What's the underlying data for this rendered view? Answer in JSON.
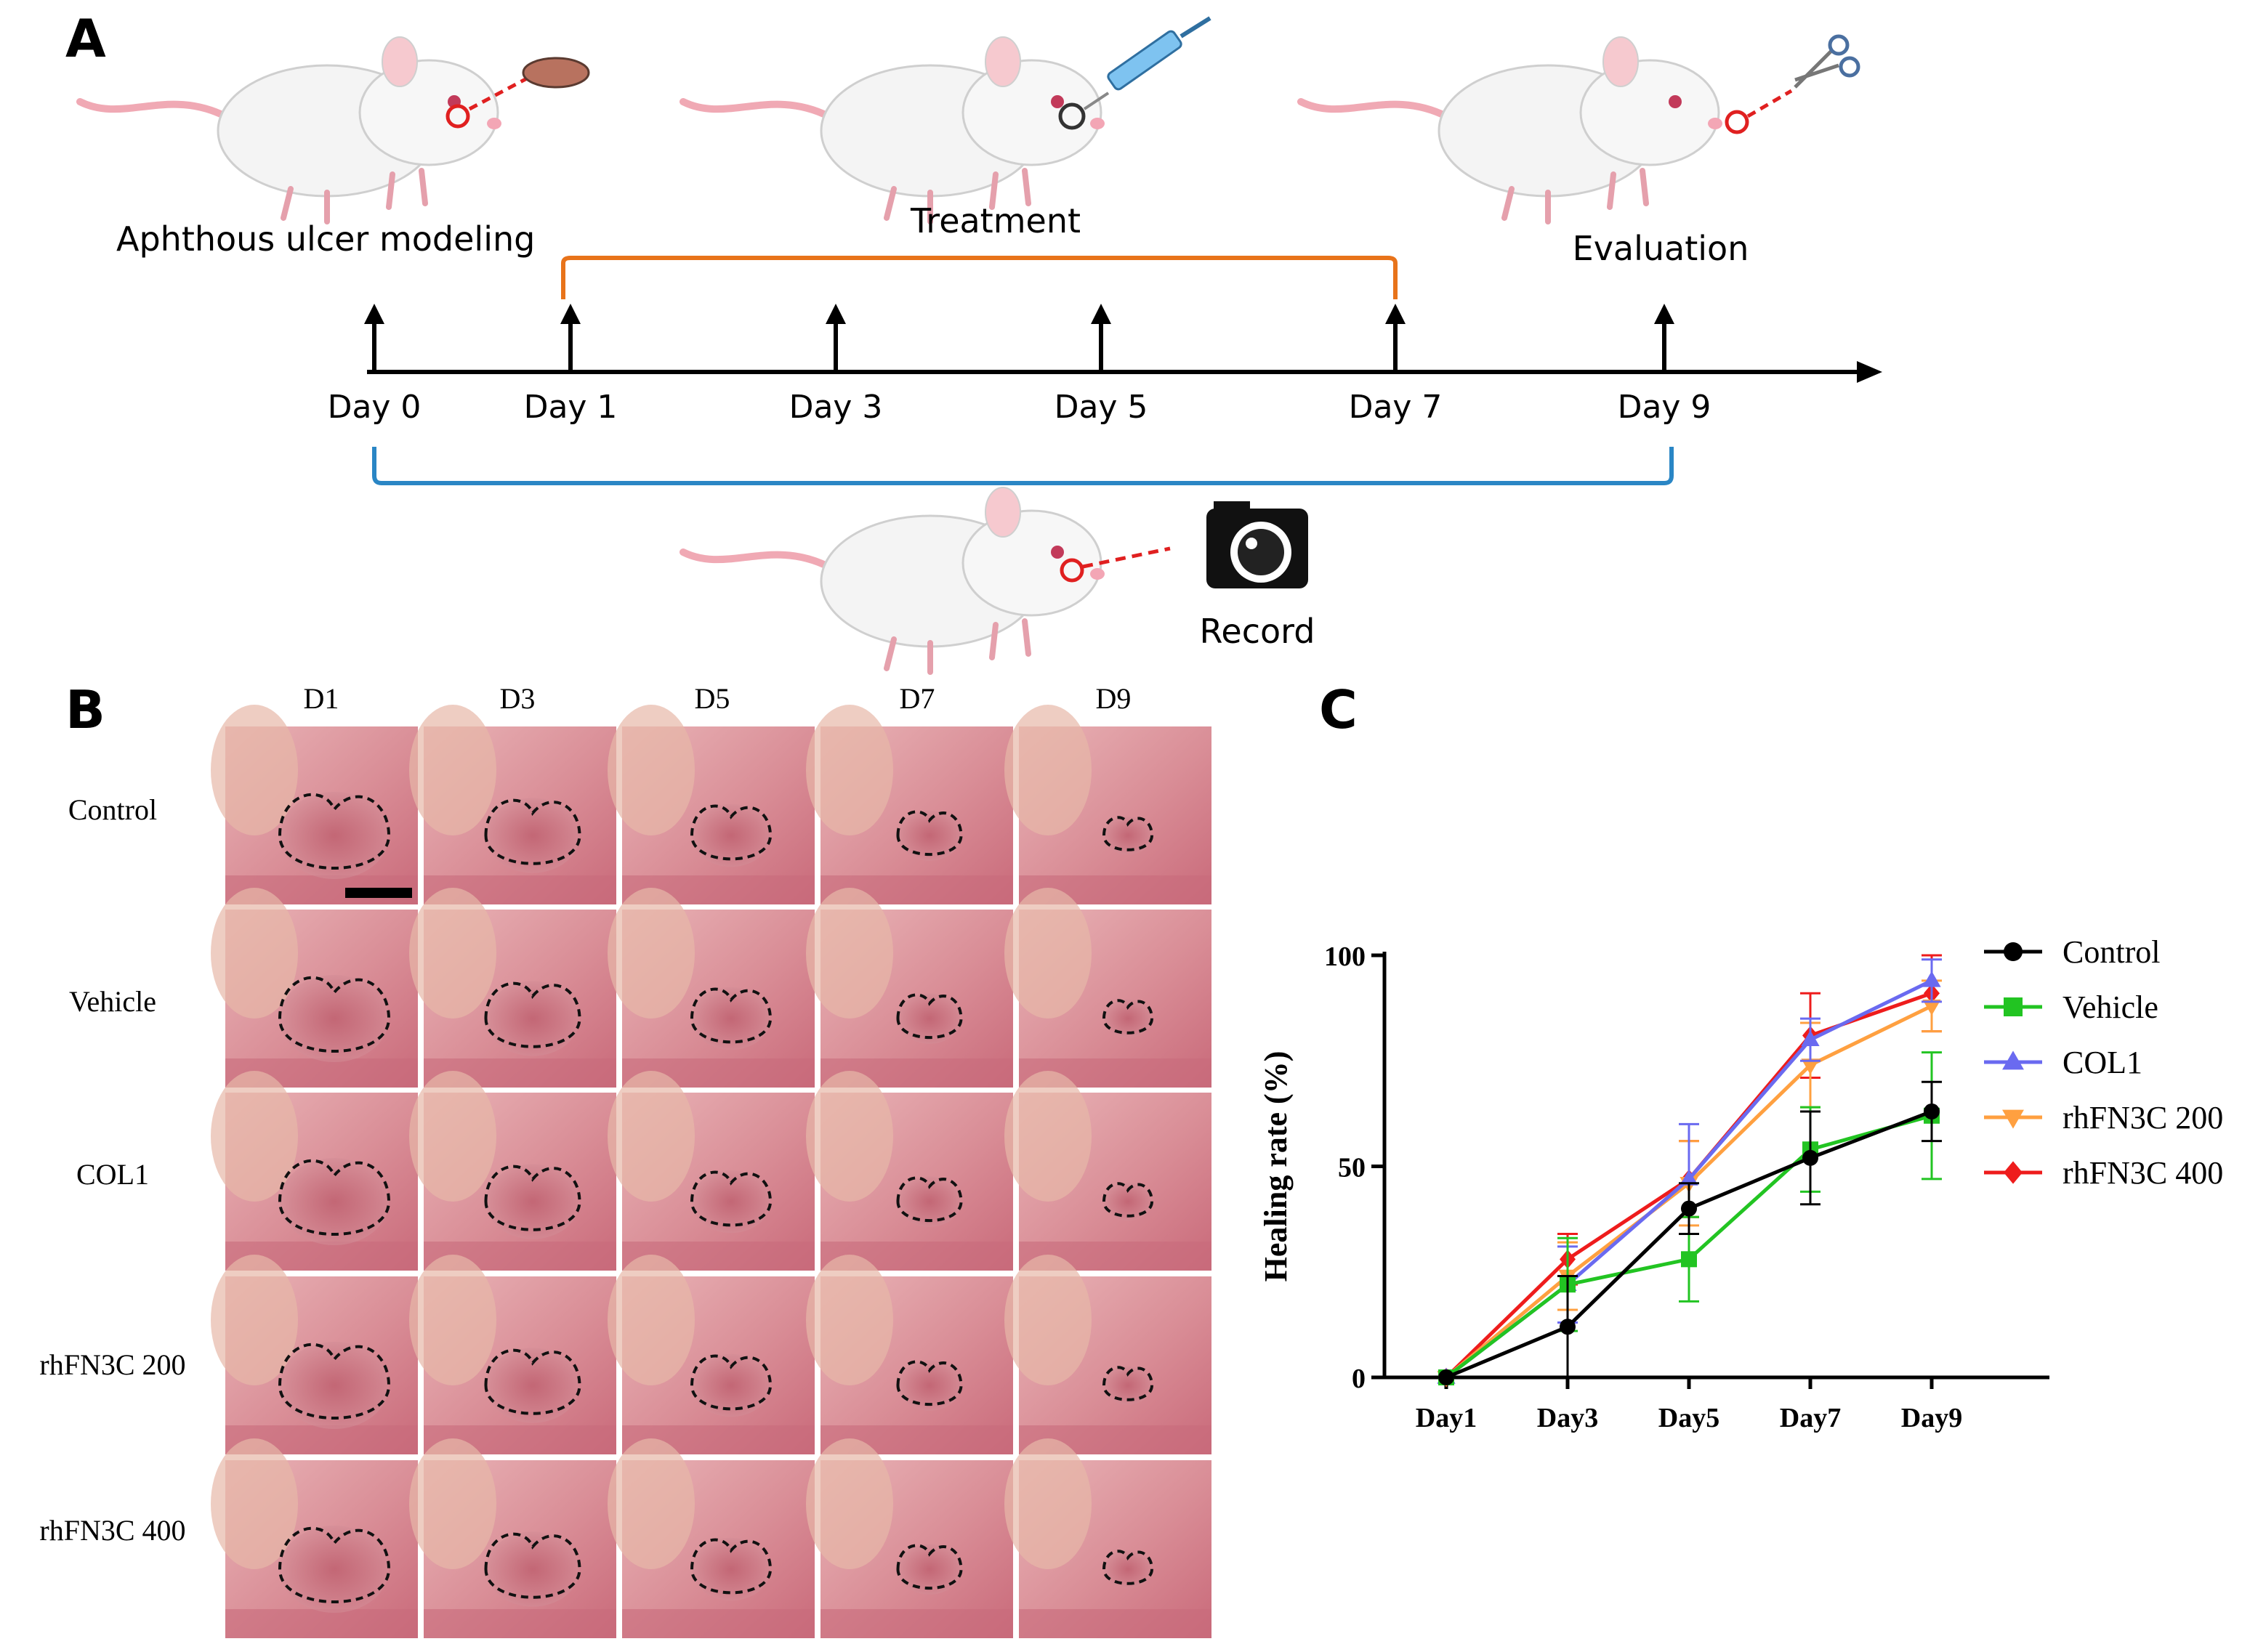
{
  "panels": {
    "a": "A",
    "b": "B",
    "c": "C"
  },
  "timeline": {
    "stage_modeling": "Aphthous ulcer modeling",
    "stage_treatment": "Treatment",
    "stage_evaluation": "Evaluation",
    "stage_record": "Record",
    "days": [
      "Day 0",
      "Day 1",
      "Day 3",
      "Day 5",
      "Day 7",
      "Day 9"
    ],
    "colors": {
      "treatment_bracket": "#e8731a",
      "record_bracket": "#2a86c5",
      "axis": "#000000"
    }
  },
  "photo_grid": {
    "columns": [
      "D1",
      "D3",
      "D5",
      "D7",
      "D9"
    ],
    "rows": [
      "Control",
      "Vehicle",
      "COL1",
      "rhFN3C 200",
      "rhFN3C 400"
    ]
  },
  "chart_data": {
    "type": "line",
    "title": "",
    "xlabel": "",
    "ylabel": "Healing rate (%)",
    "categories": [
      "Day1",
      "Day3",
      "Day5",
      "Day7",
      "Day9"
    ],
    "ylim": [
      0,
      100
    ],
    "yticks": [
      "0",
      "50",
      "100"
    ],
    "grid": false,
    "legend": "right",
    "series": [
      {
        "name": "Control",
        "color": "#000000",
        "marker": "circle",
        "values": [
          0,
          12,
          40,
          52,
          63
        ],
        "err": [
          0,
          12,
          6,
          11,
          7
        ]
      },
      {
        "name": "Vehicle",
        "color": "#22c422",
        "marker": "square",
        "values": [
          0,
          22,
          28,
          54,
          62
        ],
        "err": [
          0,
          11,
          10,
          10,
          15
        ]
      },
      {
        "name": "COL1",
        "color": "#6a6af0",
        "marker": "triangle-up",
        "values": [
          0,
          22,
          47,
          80,
          94
        ],
        "err": [
          0,
          9,
          13,
          5,
          5
        ]
      },
      {
        "name": "rhFN3C 200",
        "color": "#ffa040",
        "marker": "triangle-down",
        "values": [
          0,
          24,
          46,
          74,
          88
        ],
        "err": [
          0,
          8,
          10,
          10,
          6
        ]
      },
      {
        "name": "rhFN3C 400",
        "color": "#ee1c1c",
        "marker": "diamond",
        "values": [
          0,
          28,
          47,
          81,
          91
        ],
        "err": [
          0,
          6,
          9,
          10,
          9
        ]
      }
    ]
  }
}
